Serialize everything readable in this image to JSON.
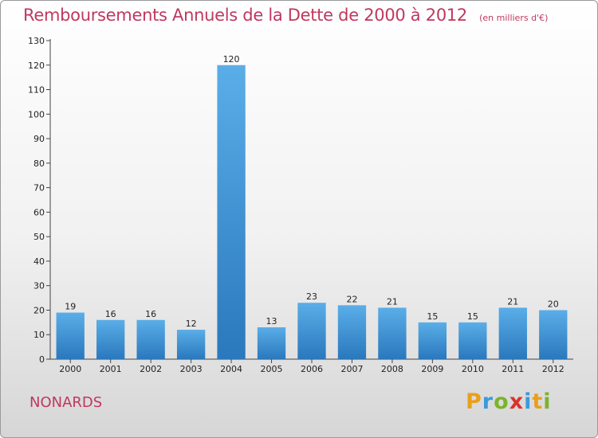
{
  "chart_data": {
    "type": "bar",
    "title": "Remboursements Annuels de la Dette de 2000 à 2012",
    "unit": "(en milliers d'€)",
    "categories": [
      "2000",
      "2001",
      "2002",
      "2003",
      "2004",
      "2005",
      "2006",
      "2007",
      "2008",
      "2009",
      "2010",
      "2011",
      "2012"
    ],
    "values": [
      19,
      16,
      16,
      12,
      120,
      13,
      23,
      22,
      21,
      15,
      15,
      21,
      20
    ],
    "ylim": [
      0,
      130
    ],
    "yticks": [
      0,
      10,
      20,
      30,
      40,
      50,
      60,
      70,
      80,
      90,
      100,
      110,
      120,
      130
    ],
    "grid": false,
    "legend": "none",
    "bar_color": "#3d8fd4"
  },
  "footer": {
    "location": "NONARDS",
    "brand": "Proxiti",
    "brand_letters": [
      {
        "char": "P",
        "color": "#e8a01c"
      },
      {
        "char": "r",
        "color": "#3b9ad9"
      },
      {
        "char": "o",
        "color": "#7bb32e"
      },
      {
        "char": "x",
        "color": "#d9342b"
      },
      {
        "char": "i",
        "color": "#3b9ad9"
      },
      {
        "char": "t",
        "color": "#e8a01c"
      },
      {
        "char": "i",
        "color": "#7bb32e"
      }
    ]
  }
}
